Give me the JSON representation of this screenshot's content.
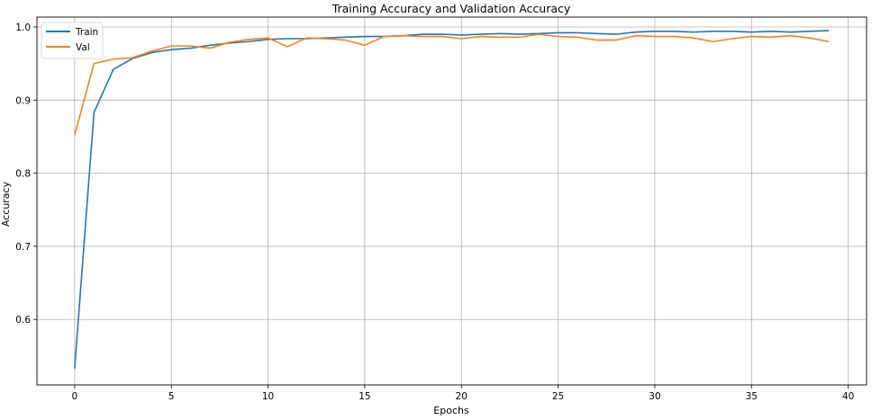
{
  "chart_data": {
    "type": "line",
    "title": "Training Accuracy and Validation Accuracy",
    "xlabel": "Epochs",
    "ylabel": "Accuracy",
    "xlim": [
      -1.95,
      40.95
    ],
    "ylim": [
      0.5105,
      1.0135
    ],
    "xticks": [
      0,
      5,
      10,
      15,
      20,
      25,
      30,
      35,
      40
    ],
    "yticks": [
      0.6,
      0.7,
      0.8,
      0.9,
      1.0
    ],
    "ytick_labels": [
      "0.6",
      "0.7",
      "0.8",
      "0.9",
      "1.0"
    ],
    "grid": true,
    "legend": "upper-left",
    "x": [
      0,
      1,
      2,
      3,
      4,
      5,
      6,
      7,
      8,
      9,
      10,
      11,
      12,
      13,
      14,
      15,
      16,
      17,
      18,
      19,
      20,
      21,
      22,
      23,
      24,
      25,
      26,
      27,
      28,
      29,
      30,
      31,
      32,
      33,
      34,
      35,
      36,
      37,
      38,
      39
    ],
    "series": [
      {
        "name": "Train",
        "color": "#1f77b4",
        "values": [
          0.533,
          0.883,
          0.942,
          0.957,
          0.965,
          0.969,
          0.971,
          0.975,
          0.978,
          0.98,
          0.983,
          0.984,
          0.984,
          0.985,
          0.986,
          0.987,
          0.987,
          0.988,
          0.99,
          0.99,
          0.989,
          0.99,
          0.991,
          0.99,
          0.991,
          0.992,
          0.992,
          0.991,
          0.99,
          0.993,
          0.994,
          0.994,
          0.993,
          0.994,
          0.994,
          0.993,
          0.994,
          0.993,
          0.994,
          0.995
        ]
      },
      {
        "name": "Val",
        "color": "#ff7f0e",
        "values": [
          0.852,
          0.95,
          0.956,
          0.958,
          0.967,
          0.974,
          0.974,
          0.971,
          0.979,
          0.983,
          0.985,
          0.973,
          0.985,
          0.984,
          0.982,
          0.975,
          0.987,
          0.988,
          0.987,
          0.987,
          0.984,
          0.987,
          0.986,
          0.986,
          0.99,
          0.987,
          0.986,
          0.982,
          0.982,
          0.988,
          0.987,
          0.987,
          0.985,
          0.98,
          0.984,
          0.987,
          0.986,
          0.988,
          0.985,
          0.98
        ]
      }
    ]
  }
}
